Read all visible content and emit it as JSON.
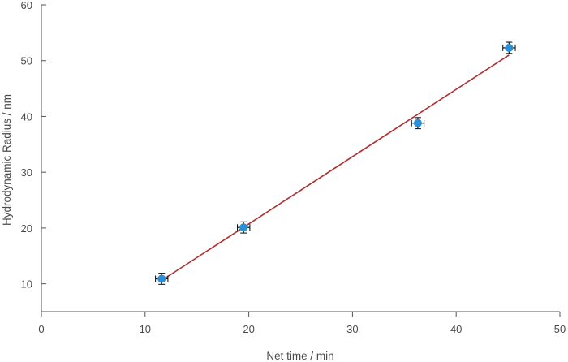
{
  "chart_data": {
    "type": "scatter",
    "xlabel": "Net time / min",
    "ylabel": "Hydrodynamic Radius / nm",
    "xlim": [
      0,
      50
    ],
    "ylim": [
      5,
      60
    ],
    "x_ticks": [
      0,
      10,
      20,
      30,
      40,
      50
    ],
    "y_ticks": [
      10,
      20,
      30,
      40,
      50,
      60
    ],
    "grid": false,
    "colors": {
      "marker": "#2a8fd6",
      "fit_line": "#b03030",
      "error_bar": "#1a1a1a",
      "axis": "#555555"
    },
    "series": [
      {
        "x": [
          11.6,
          19.5,
          36.3,
          45.1
        ],
        "y": [
          10.9,
          20.1,
          38.8,
          52.3
        ],
        "x_err": [
          0.6,
          0.6,
          0.6,
          0.6
        ],
        "y_err": [
          1.0,
          1.0,
          1.0,
          1.0
        ]
      }
    ],
    "fit_line": {
      "x": [
        11.6,
        45.1
      ],
      "y": [
        10.6,
        51.0
      ]
    }
  }
}
